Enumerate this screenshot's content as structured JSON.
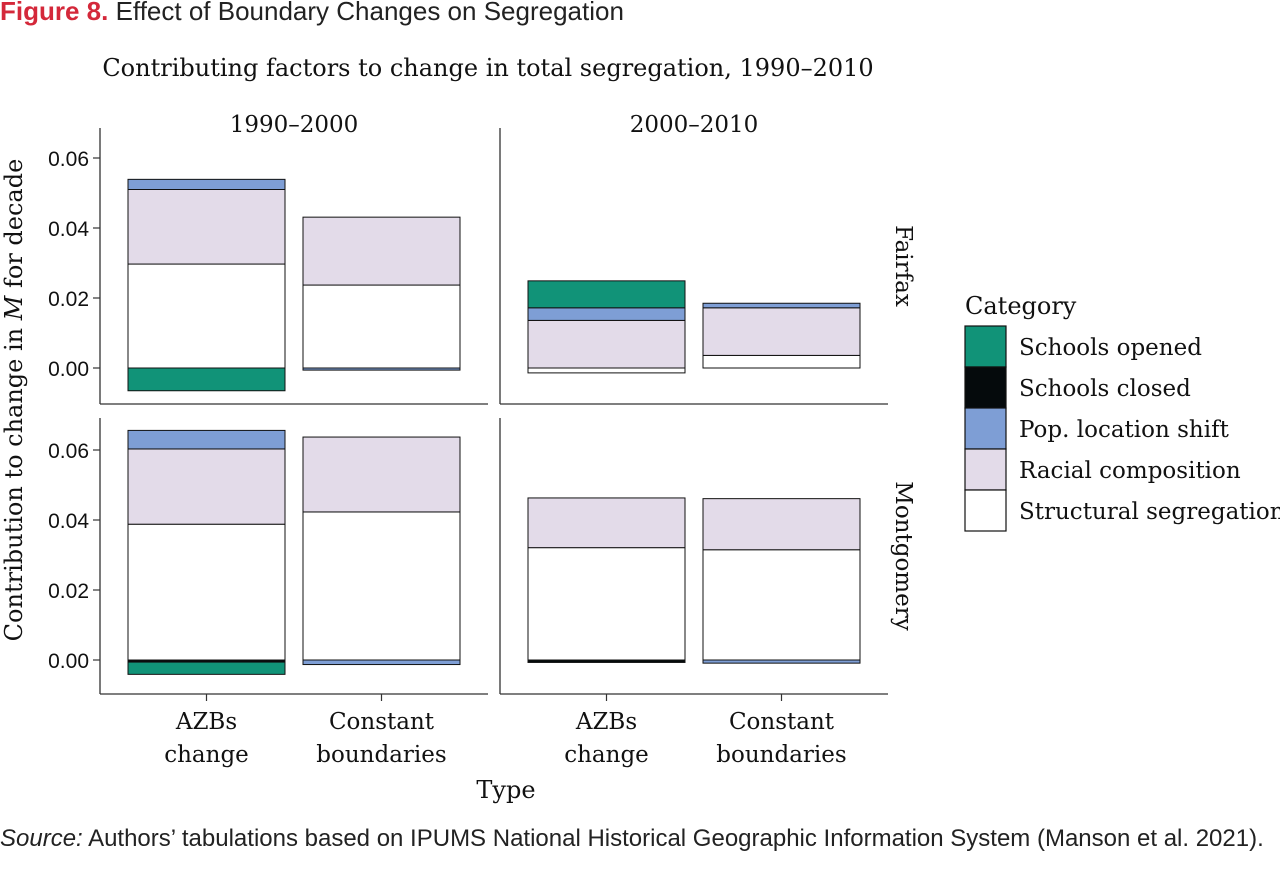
{
  "figure": {
    "label": "Figure 8.",
    "title": "Effect of Boundary Changes on Segregation"
  },
  "source": {
    "label": "Source:",
    "text": "Authors’ tabulations based on IPUMS National Historical Geographic Information System (Manson et al. 2021)."
  },
  "chart_data": {
    "type": "bar",
    "stacked": true,
    "title": "Contributing factors to change in total segregation, 1990–2010",
    "xlabel": "Type",
    "ylabel_prefix": "Contribution to change in ",
    "ylabel_italic": "M",
    "ylabel_suffix": " for decade",
    "ylim": [
      -0.008,
      0.07
    ],
    "yticks": [
      "0.00",
      "0.02",
      "0.04",
      "0.06"
    ],
    "ytick_values": [
      0,
      0.02,
      0.04,
      0.06
    ],
    "categories": [
      [
        "AZBs",
        "change"
      ],
      [
        "Constant",
        "boundaries"
      ]
    ],
    "facet_columns": [
      "1990–2000",
      "2000–2010"
    ],
    "facet_rows": [
      "Fairfax",
      "Montgomery"
    ],
    "grid": false,
    "legend": {
      "title": "Category",
      "position": "right",
      "items": [
        {
          "name": "Schools opened",
          "color": "#119378"
        },
        {
          "name": "Schools closed",
          "color": "#050a0c"
        },
        {
          "name": "Pop. location shift",
          "color": "#7e9ed5"
        },
        {
          "name": "Racial composition",
          "color": "#e3dbe9"
        },
        {
          "name": "Structural segregation",
          "color": "#ffffff"
        }
      ]
    },
    "panels": [
      {
        "row": "Fairfax",
        "col": "1990–2000",
        "bars": [
          {
            "category": "AZBs change",
            "segments": {
              "Structural segregation": 0.0297,
              "Racial composition": 0.0213,
              "Pop. location shift": 0.0029,
              "Schools closed": 0.0,
              "Schools opened": -0.0065
            }
          },
          {
            "category": "Constant boundaries",
            "segments": {
              "Structural segregation": 0.0237,
              "Racial composition": 0.0194,
              "Pop. location shift": -0.0006,
              "Schools closed": 0.0,
              "Schools opened": 0.0
            }
          }
        ]
      },
      {
        "row": "Fairfax",
        "col": "2000–2010",
        "bars": [
          {
            "category": "AZBs change",
            "segments": {
              "Structural segregation": -0.0014,
              "Racial composition": 0.0136,
              "Pop. location shift": 0.0036,
              "Schools closed": 0.0,
              "Schools opened": 0.0077
            }
          },
          {
            "category": "Constant boundaries",
            "segments": {
              "Structural segregation": 0.0036,
              "Racial composition": 0.0136,
              "Pop. location shift": 0.0013,
              "Schools closed": 0.0,
              "Schools opened": 0.0
            }
          }
        ]
      },
      {
        "row": "Montgomery",
        "col": "1990–2000",
        "bars": [
          {
            "category": "AZBs change",
            "segments": {
              "Structural segregation": 0.0388,
              "Racial composition": 0.0215,
              "Pop. location shift": 0.0053,
              "Schools closed": -0.0006,
              "Schools opened": -0.0035
            }
          },
          {
            "category": "Constant boundaries",
            "segments": {
              "Structural segregation": 0.0423,
              "Racial composition": 0.0214,
              "Pop. location shift": -0.0013,
              "Schools closed": 0.0,
              "Schools opened": 0.0
            }
          }
        ]
      },
      {
        "row": "Montgomery",
        "col": "2000–2010",
        "bars": [
          {
            "category": "AZBs change",
            "segments": {
              "Structural segregation": 0.0321,
              "Racial composition": 0.0142,
              "Pop. location shift": 0.0,
              "Schools closed": -0.0007,
              "Schools opened": 0.0
            }
          },
          {
            "category": "Constant boundaries",
            "segments": {
              "Structural segregation": 0.0315,
              "Racial composition": 0.0146,
              "Pop. location shift": -0.0009,
              "Schools closed": 0.0,
              "Schools opened": 0.0
            }
          }
        ]
      }
    ]
  }
}
